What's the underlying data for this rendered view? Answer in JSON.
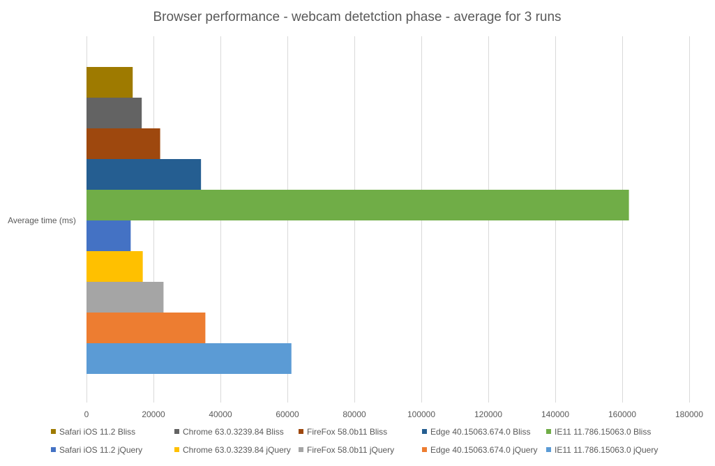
{
  "chart_data": {
    "type": "bar",
    "orientation": "horizontal",
    "title": "Browser performance - webcam detetction phase - average for 3 runs",
    "categories": [
      "Average time (ms)"
    ],
    "xlabel": "",
    "ylabel": "",
    "xlim": [
      0,
      180000
    ],
    "x_ticks": [
      0,
      20000,
      40000,
      60000,
      80000,
      100000,
      120000,
      140000,
      160000,
      180000
    ],
    "grid": "vertical",
    "legend_position": "bottom",
    "series": [
      {
        "name": "Safari iOS 11.2 Bliss",
        "values": [
          13800
        ],
        "color": "#9E7A00"
      },
      {
        "name": "Chrome 63.0.3239.84 Bliss",
        "values": [
          16500
        ],
        "color": "#636363"
      },
      {
        "name": "FireFox 58.0b11 Bliss",
        "values": [
          22000
        ],
        "color": "#9E480E"
      },
      {
        "name": "Edge 40.15063.674.0 Bliss",
        "values": [
          34200
        ],
        "color": "#255E91"
      },
      {
        "name": "IE11 11.786.15063.0 Bliss",
        "values": [
          162000
        ],
        "color": "#70AD47"
      },
      {
        "name": "Safari iOS 11.2 jQuery",
        "values": [
          13200
        ],
        "color": "#4472C4"
      },
      {
        "name": "Chrome 63.0.3239.84 jQuery",
        "values": [
          16800
        ],
        "color": "#FFC000"
      },
      {
        "name": "FireFox 58.0b11 jQuery",
        "values": [
          23000
        ],
        "color": "#A5A5A5"
      },
      {
        "name": "Edge 40.15063.674.0 jQuery",
        "values": [
          35500
        ],
        "color": "#ED7D31"
      },
      {
        "name": "IE11 11.786.15063.0 jQuery",
        "values": [
          61200
        ],
        "color": "#5B9BD5"
      }
    ],
    "colors": {
      "gridline": "#D9D9D9",
      "text": "#595959"
    }
  }
}
